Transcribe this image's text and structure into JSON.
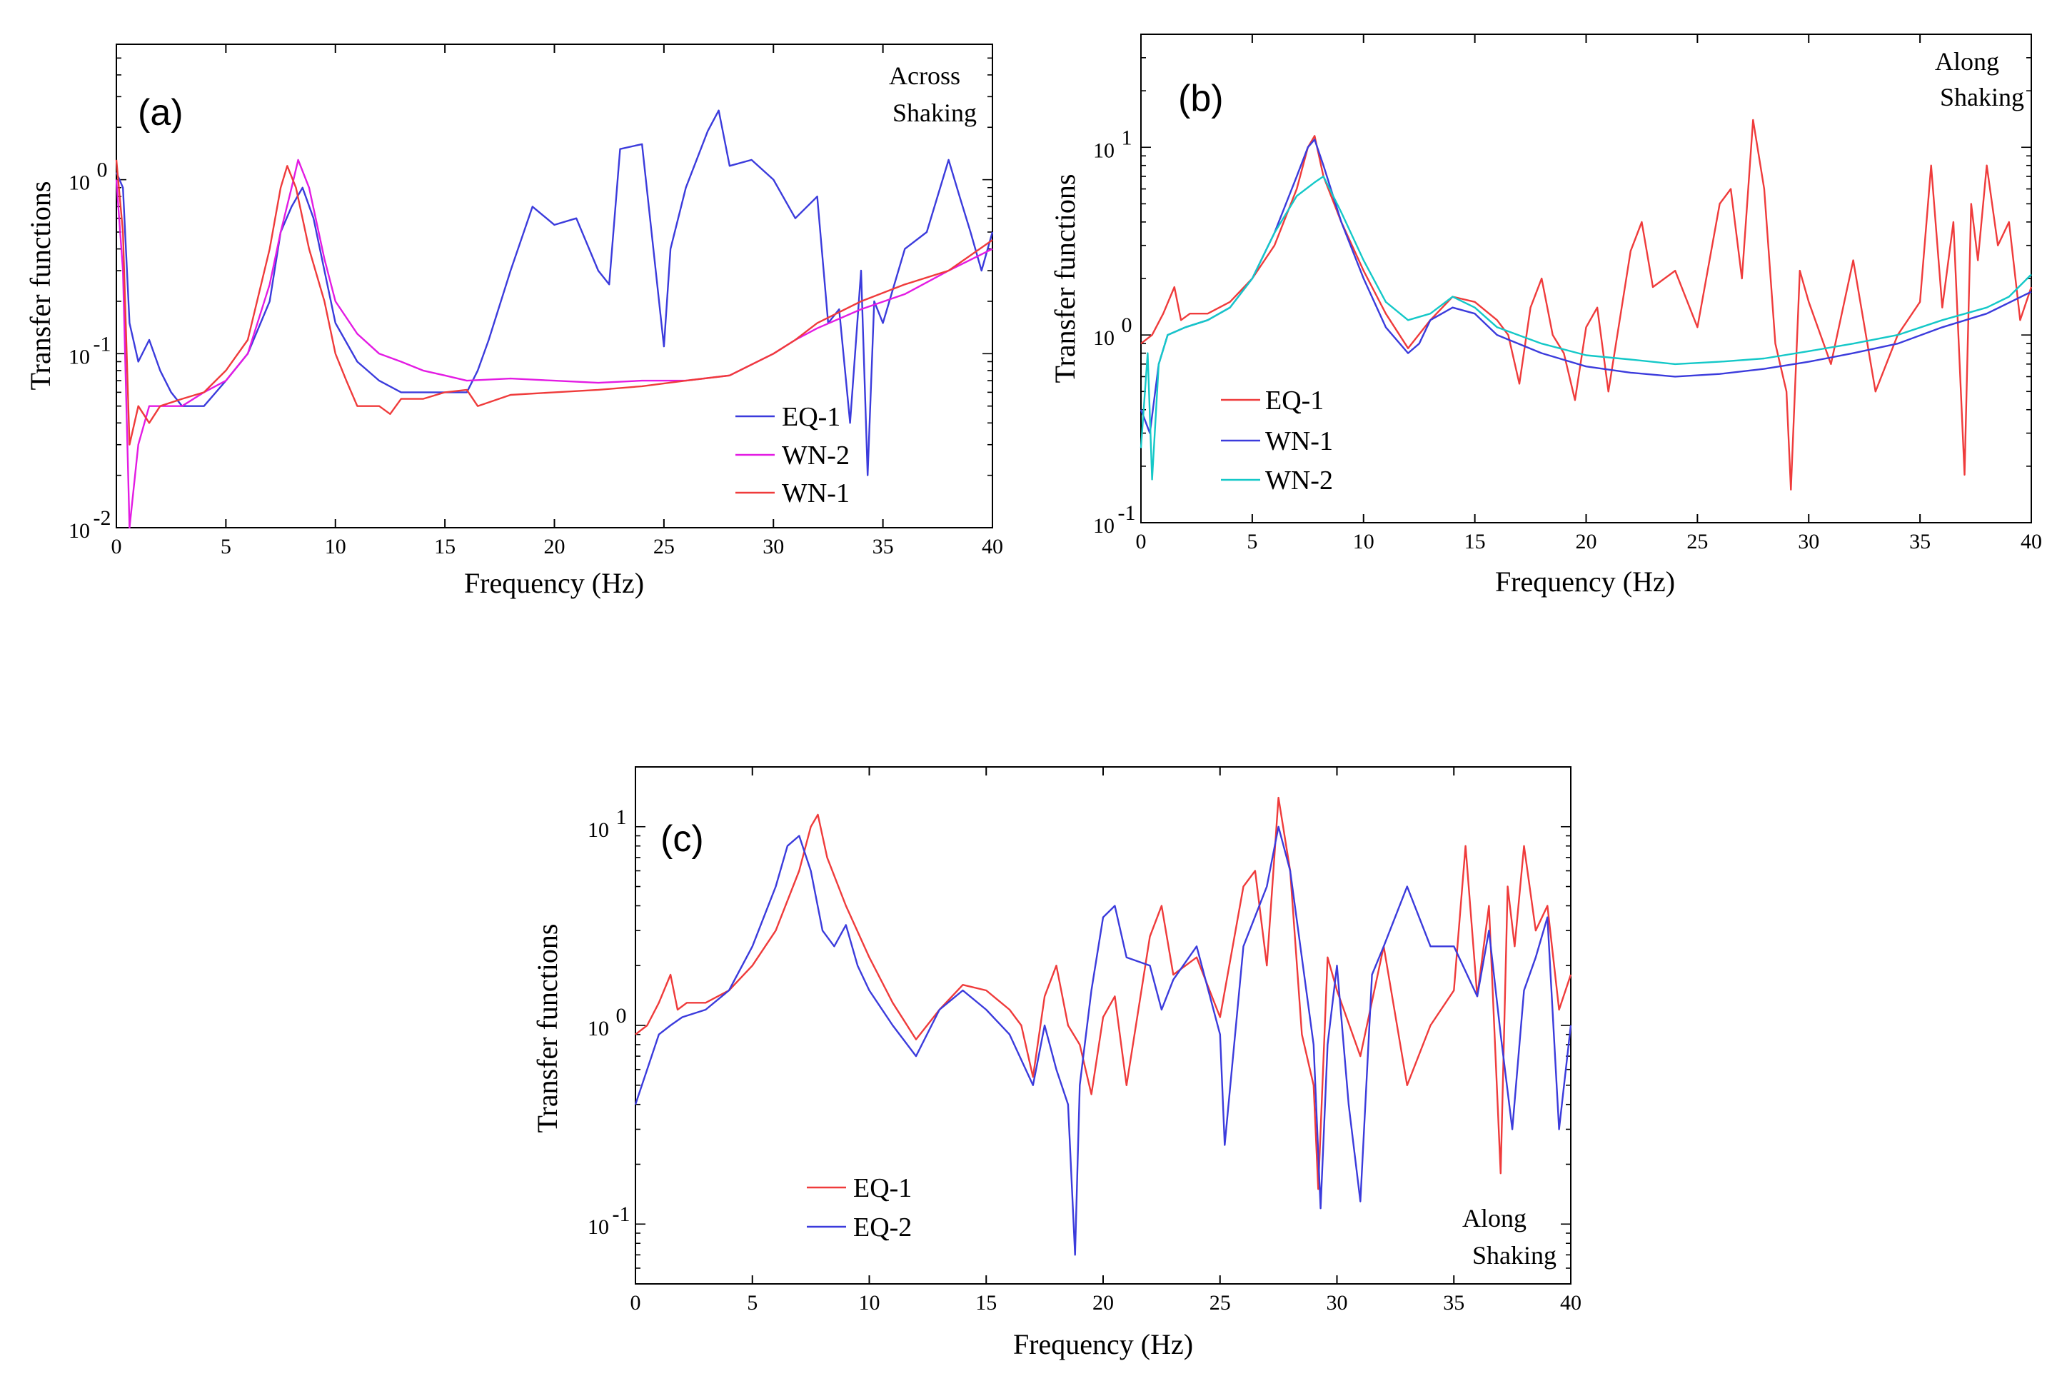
{
  "chart_data": [
    {
      "type": "line",
      "panel_label": "(a)",
      "annotation": [
        "Across",
        "Shaking"
      ],
      "xlabel": "Frequency (Hz)",
      "ylabel": "Transfer functions",
      "xlim": [
        0,
        40
      ],
      "ylim": [
        0.01,
        6
      ],
      "yscale": "log",
      "x_ticks": [
        "0",
        "5",
        "10",
        "15",
        "20",
        "25",
        "30",
        "35",
        "40"
      ],
      "y_ticks": [
        {
          "base": "10",
          "exp": "-2"
        },
        {
          "base": "10",
          "exp": "-1"
        },
        {
          "base": "10",
          "exp": "0"
        }
      ],
      "legend_position": "lower-right",
      "series": [
        {
          "name": "EQ-1",
          "color": "#3b3bdc",
          "x": [
            0,
            0.3,
            0.6,
            1,
            1.5,
            2,
            2.5,
            3,
            4,
            5,
            6,
            7,
            7.5,
            8,
            8.5,
            9,
            9.5,
            10,
            11,
            12,
            13,
            14,
            15,
            16,
            16.5,
            17,
            18,
            19,
            20,
            21,
            22,
            22.5,
            23,
            24,
            25,
            25.3,
            26,
            27,
            27.5,
            28,
            29,
            30,
            31,
            32,
            32.5,
            33,
            33.5,
            34,
            34.3,
            34.6,
            35,
            36,
            37,
            38,
            38.5,
            39,
            39.5,
            40
          ],
          "y": [
            1.1,
            0.9,
            0.15,
            0.09,
            0.12,
            0.08,
            0.06,
            0.05,
            0.05,
            0.07,
            0.1,
            0.2,
            0.5,
            0.7,
            0.9,
            0.6,
            0.3,
            0.15,
            0.09,
            0.07,
            0.06,
            0.06,
            0.06,
            0.06,
            0.08,
            0.12,
            0.3,
            0.7,
            0.55,
            0.6,
            0.3,
            0.25,
            1.5,
            1.6,
            0.11,
            0.4,
            0.9,
            1.9,
            2.5,
            1.2,
            1.3,
            1.0,
            0.6,
            0.8,
            0.15,
            0.18,
            0.04,
            0.3,
            0.02,
            0.2,
            0.15,
            0.4,
            0.5,
            1.3,
            0.8,
            0.5,
            0.3,
            0.5
          ]
        },
        {
          "name": "WN-2",
          "color": "#e31be3",
          "x": [
            0,
            0.3,
            0.6,
            1,
            1.5,
            2,
            3,
            4,
            5,
            6,
            7,
            7.5,
            8,
            8.3,
            8.8,
            9.5,
            10,
            11,
            12,
            13,
            14,
            15,
            16,
            18,
            20,
            22,
            24,
            26,
            28,
            30,
            31,
            32,
            34,
            36,
            38,
            40
          ],
          "y": [
            1.0,
            0.3,
            0.01,
            0.03,
            0.05,
            0.05,
            0.05,
            0.06,
            0.07,
            0.1,
            0.25,
            0.5,
            0.9,
            1.3,
            0.9,
            0.35,
            0.2,
            0.13,
            0.1,
            0.09,
            0.08,
            0.075,
            0.07,
            0.072,
            0.07,
            0.068,
            0.07,
            0.07,
            0.075,
            0.1,
            0.12,
            0.14,
            0.18,
            0.22,
            0.3,
            0.4
          ]
        },
        {
          "name": "WN-1",
          "color": "#ef3b3b",
          "x": [
            0,
            0.3,
            0.6,
            1,
            1.5,
            2,
            3,
            4,
            5,
            6,
            7,
            7.5,
            7.8,
            8.2,
            8.8,
            9.5,
            10,
            10.5,
            11,
            12,
            12.5,
            13,
            14,
            15,
            16,
            16.5,
            18,
            20,
            22,
            24,
            26,
            28,
            30,
            31,
            32,
            34,
            36,
            38,
            40
          ],
          "y": [
            1.3,
            0.5,
            0.03,
            0.05,
            0.04,
            0.05,
            0.055,
            0.06,
            0.08,
            0.12,
            0.4,
            0.9,
            1.2,
            0.9,
            0.4,
            0.2,
            0.1,
            0.07,
            0.05,
            0.05,
            0.045,
            0.055,
            0.055,
            0.06,
            0.062,
            0.05,
            0.058,
            0.06,
            0.062,
            0.065,
            0.07,
            0.075,
            0.1,
            0.12,
            0.15,
            0.2,
            0.25,
            0.3,
            0.45
          ]
        }
      ]
    },
    {
      "type": "line",
      "panel_label": "(b)",
      "annotation": [
        "Along",
        "Shaking"
      ],
      "xlabel": "Frequency (Hz)",
      "ylabel": "Transfer functions",
      "xlim": [
        0,
        40
      ],
      "ylim": [
        0.1,
        40
      ],
      "yscale": "log",
      "x_ticks": [
        "0",
        "5",
        "10",
        "15",
        "20",
        "25",
        "30",
        "35",
        "40"
      ],
      "y_ticks": [
        {
          "base": "10",
          "exp": "-1"
        },
        {
          "base": "10",
          "exp": "0"
        },
        {
          "base": "10",
          "exp": "1"
        }
      ],
      "legend_position": "lower-left",
      "series": [
        {
          "name": "EQ-1",
          "color": "#ef3b3b",
          "x": [
            0,
            0.5,
            1,
            1.5,
            1.8,
            2.2,
            3,
            4,
            5,
            6,
            7,
            7.5,
            7.8,
            8.2,
            9,
            10,
            11,
            12,
            13,
            14,
            15,
            16,
            16.5,
            17,
            17.5,
            18,
            18.5,
            19,
            19.5,
            20,
            20.5,
            21,
            22,
            22.5,
            23,
            24,
            25,
            26,
            26.5,
            27,
            27.5,
            28,
            28.5,
            29,
            29.2,
            29.6,
            30,
            31,
            32,
            33,
            34,
            35,
            35.5,
            36,
            36.5,
            37,
            37.3,
            37.6,
            38,
            38.5,
            39,
            39.5,
            40
          ],
          "y": [
            0.9,
            1.0,
            1.3,
            1.8,
            1.2,
            1.3,
            1.3,
            1.5,
            2,
            3,
            6,
            10,
            11.5,
            7,
            4,
            2.2,
            1.3,
            0.85,
            1.2,
            1.6,
            1.5,
            1.2,
            1.0,
            0.55,
            1.4,
            2.0,
            1.0,
            0.8,
            0.45,
            1.1,
            1.4,
            0.5,
            2.8,
            4.0,
            1.8,
            2.2,
            1.1,
            5.0,
            6.0,
            2.0,
            14,
            6.0,
            0.9,
            0.5,
            0.15,
            2.2,
            1.5,
            0.7,
            2.5,
            0.5,
            1.0,
            1.5,
            8.0,
            1.4,
            4.0,
            0.18,
            5.0,
            2.5,
            8.0,
            3.0,
            4.0,
            1.2,
            1.8
          ]
        },
        {
          "name": "WN-1",
          "color": "#3b3bdc",
          "x": [
            0,
            0.4,
            0.8,
            1.2,
            2,
            3,
            4,
            5,
            6,
            7,
            7.5,
            7.8,
            8.2,
            9,
            10,
            11,
            12,
            12.5,
            13,
            14,
            15,
            16,
            18,
            20,
            22,
            24,
            26,
            28,
            30,
            32,
            34,
            36,
            38,
            40
          ],
          "y": [
            0.4,
            0.3,
            0.7,
            1.0,
            1.1,
            1.2,
            1.4,
            2.0,
            3.5,
            7.0,
            10,
            11,
            8,
            4,
            2,
            1.1,
            0.8,
            0.9,
            1.2,
            1.4,
            1.3,
            1.0,
            0.8,
            0.68,
            0.63,
            0.6,
            0.62,
            0.66,
            0.72,
            0.8,
            0.9,
            1.1,
            1.3,
            1.7
          ]
        },
        {
          "name": "WN-2",
          "color": "#14c8c8",
          "x": [
            0,
            0.3,
            0.5,
            0.8,
            1.2,
            2,
            3,
            4,
            5,
            6,
            7,
            7.8,
            8.2,
            9,
            10,
            11,
            12,
            13,
            14,
            15,
            16,
            18,
            20,
            22,
            24,
            26,
            28,
            30,
            32,
            34,
            36,
            38,
            39,
            40
          ],
          "y": [
            0.25,
            0.8,
            0.17,
            0.7,
            1.0,
            1.1,
            1.2,
            1.4,
            2.0,
            3.5,
            5.5,
            6.5,
            7.0,
            4.5,
            2.5,
            1.5,
            1.2,
            1.3,
            1.6,
            1.4,
            1.1,
            0.9,
            0.78,
            0.74,
            0.7,
            0.72,
            0.75,
            0.82,
            0.9,
            1.0,
            1.2,
            1.4,
            1.6,
            2.1
          ]
        }
      ]
    },
    {
      "type": "line",
      "panel_label": "(c)",
      "annotation": [
        "Along",
        "Shaking"
      ],
      "xlabel": "Frequency (Hz)",
      "ylabel": "Transfer functions",
      "xlim": [
        0,
        40
      ],
      "ylim": [
        0.05,
        20
      ],
      "yscale": "log",
      "x_ticks": [
        "0",
        "5",
        "10",
        "15",
        "20",
        "25",
        "30",
        "35",
        "40"
      ],
      "y_ticks": [
        {
          "base": "10",
          "exp": "-1"
        },
        {
          "base": "10",
          "exp": "0"
        },
        {
          "base": "10",
          "exp": "1"
        }
      ],
      "legend_position": "lower-left",
      "series": [
        {
          "name": "EQ-1",
          "color": "#ef3b3b",
          "x": [
            0,
            0.5,
            1,
            1.5,
            1.8,
            2.2,
            3,
            4,
            5,
            6,
            7,
            7.5,
            7.8,
            8.2,
            9,
            10,
            11,
            12,
            13,
            14,
            15,
            16,
            16.5,
            17,
            17.5,
            18,
            18.5,
            19,
            19.5,
            20,
            20.5,
            21,
            22,
            22.5,
            23,
            24,
            25,
            26,
            26.5,
            27,
            27.5,
            28,
            28.5,
            29,
            29.2,
            29.6,
            30,
            31,
            32,
            33,
            34,
            35,
            35.5,
            36,
            36.5,
            37,
            37.3,
            37.6,
            38,
            38.5,
            39,
            39.5,
            40
          ],
          "y": [
            0.9,
            1.0,
            1.3,
            1.8,
            1.2,
            1.3,
            1.3,
            1.5,
            2,
            3,
            6,
            10,
            11.5,
            7,
            4,
            2.2,
            1.3,
            0.85,
            1.2,
            1.6,
            1.5,
            1.2,
            1.0,
            0.55,
            1.4,
            2.0,
            1.0,
            0.8,
            0.45,
            1.1,
            1.4,
            0.5,
            2.8,
            4.0,
            1.8,
            2.2,
            1.1,
            5.0,
            6.0,
            2.0,
            14,
            6.0,
            0.9,
            0.5,
            0.15,
            2.2,
            1.5,
            0.7,
            2.5,
            0.5,
            1.0,
            1.5,
            8.0,
            1.4,
            4.0,
            0.18,
            5.0,
            2.5,
            8.0,
            3.0,
            4.0,
            1.2,
            1.8
          ]
        },
        {
          "name": "EQ-2",
          "color": "#3b3bdc",
          "x": [
            0,
            0.5,
            1,
            1.5,
            2,
            3,
            4,
            5,
            6,
            6.5,
            7,
            7.5,
            8,
            8.5,
            9,
            9.5,
            10,
            11,
            12,
            13,
            14,
            15,
            16,
            17,
            17.5,
            18,
            18.5,
            18.8,
            19,
            19.5,
            20,
            20.5,
            21,
            22,
            22.5,
            23,
            24,
            25,
            25.2,
            26,
            27,
            27.5,
            28,
            29,
            29.3,
            29.6,
            30,
            30.5,
            31,
            31.5,
            32,
            33,
            34,
            35,
            36,
            36.5,
            37,
            37.5,
            38,
            38.5,
            39,
            39.5,
            40
          ],
          "y": [
            0.4,
            0.6,
            0.9,
            1.0,
            1.1,
            1.2,
            1.5,
            2.5,
            5,
            8,
            9,
            6,
            3,
            2.5,
            3.2,
            2.0,
            1.5,
            1.0,
            0.7,
            1.2,
            1.5,
            1.2,
            0.9,
            0.5,
            1.0,
            0.6,
            0.4,
            0.07,
            0.5,
            1.5,
            3.5,
            4.0,
            2.2,
            2.0,
            1.2,
            1.7,
            2.5,
            0.9,
            0.25,
            2.5,
            5,
            10,
            6,
            0.8,
            0.12,
            0.8,
            2,
            0.4,
            0.13,
            1.8,
            2.5,
            5,
            2.5,
            2.5,
            1.4,
            3.0,
            0.9,
            0.3,
            1.5,
            2.2,
            3.5,
            0.3,
            1.0
          ]
        }
      ]
    }
  ]
}
